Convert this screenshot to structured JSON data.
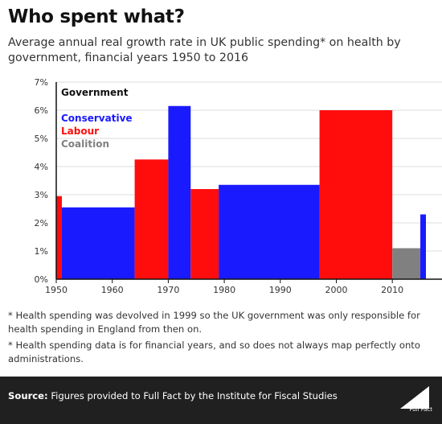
{
  "title": "Who spent what?",
  "subtitle": "Average annual real growth rate in UK public spending* on health by government, financial years 1950 to 2016",
  "footnotes": [
    "* Health spending was devolved in 1999 so the UK government was only responsible for health spending in England from then on.",
    "* Health spending data is for financial years, and so does not always map perfectly onto administrations."
  ],
  "source": {
    "label": "Source:",
    "text": "Figures provided to Full Fact by the Institute for Fiscal Studies"
  },
  "logo_text": "Full Fact",
  "colors": {
    "Conservative": "#1a1aff",
    "Labour": "#ff0d0d",
    "Coalition": "#808080"
  },
  "chart_data": {
    "type": "bar",
    "legend": {
      "title": "Government",
      "entries": [
        "Conservative",
        "Labour",
        "Coalition"
      ],
      "placement": "top-left"
    },
    "x_ticks": [
      1950,
      1960,
      1970,
      1980,
      1990,
      2000,
      2010
    ],
    "y_ticks": [
      "0%",
      "1%",
      "2%",
      "3%",
      "4%",
      "5%",
      "6%",
      "7%"
    ],
    "xlim": [
      1950,
      2016
    ],
    "ylim": [
      0,
      7
    ],
    "yunit": "%",
    "bars": [
      {
        "start": 1950,
        "end": 1951,
        "value": 2.95,
        "party": "Labour"
      },
      {
        "start": 1951,
        "end": 1964,
        "value": 2.55,
        "party": "Conservative"
      },
      {
        "start": 1964,
        "end": 1970,
        "value": 4.25,
        "party": "Labour"
      },
      {
        "start": 1970,
        "end": 1974,
        "value": 6.15,
        "party": "Conservative"
      },
      {
        "start": 1974,
        "end": 1979,
        "value": 3.2,
        "party": "Labour"
      },
      {
        "start": 1979,
        "end": 1997,
        "value": 3.35,
        "party": "Conservative"
      },
      {
        "start": 1997,
        "end": 2010,
        "value": 6.0,
        "party": "Labour"
      },
      {
        "start": 2010,
        "end": 2015,
        "value": 1.1,
        "party": "Coalition"
      },
      {
        "start": 2015,
        "end": 2016,
        "value": 2.3,
        "party": "Conservative"
      }
    ]
  }
}
